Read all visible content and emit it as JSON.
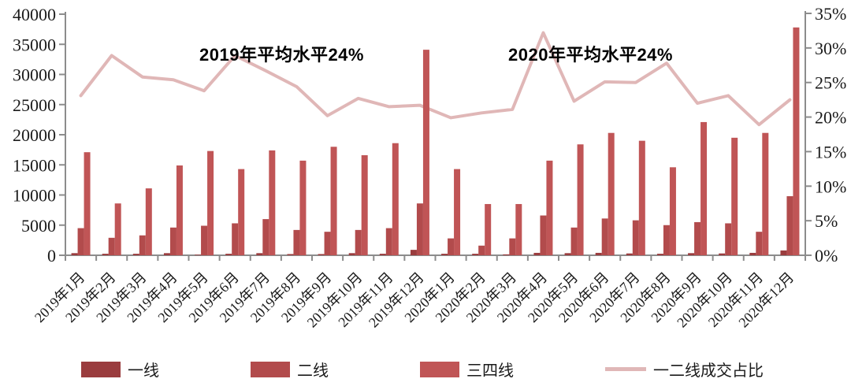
{
  "chart_data": {
    "type": "bar",
    "subtype": "grouped-bar-with-line-combo",
    "title": "",
    "categories": [
      "2019年1月",
      "2019年2月",
      "2019年3月",
      "2019年4月",
      "2019年5月",
      "2019年6月",
      "2019年7月",
      "2019年8月",
      "2019年9月",
      "2019年10月",
      "2019年11月",
      "2019年12月",
      "2020年1月",
      "2020年2月",
      "2020年3月",
      "2020年4月",
      "2020年5月",
      "2020年6月",
      "2020年7月",
      "2020年8月",
      "2020年9月",
      "2020年10月",
      "2020年11月",
      "2020年12月"
    ],
    "series": [
      {
        "name": "一线",
        "type": "bar",
        "axis": "left",
        "color": "#9A3C3E",
        "values": [
          350,
          250,
          250,
          350,
          100,
          250,
          350,
          200,
          200,
          350,
          250,
          900,
          250,
          250,
          150,
          400,
          350,
          400,
          300,
          250,
          350,
          300,
          400,
          800
        ]
      },
      {
        "name": "二线",
        "type": "bar",
        "axis": "left",
        "color": "#B24B4C",
        "values": [
          4500,
          2900,
          3300,
          4600,
          4900,
          5300,
          6000,
          4200,
          3900,
          4200,
          4500,
          8600,
          2800,
          1600,
          2800,
          6600,
          4600,
          6100,
          5800,
          5000,
          5500,
          5300,
          3900,
          9800
        ]
      },
      {
        "name": "三四线",
        "type": "bar",
        "axis": "left",
        "color": "#C05556",
        "values": [
          17100,
          8600,
          11100,
          14900,
          17300,
          14300,
          17400,
          15700,
          18000,
          16600,
          18600,
          34100,
          14300,
          8500,
          8500,
          15700,
          18400,
          20300,
          19000,
          14600,
          22100,
          19500,
          20300,
          37800
        ]
      },
      {
        "name": "一二线成交占比",
        "type": "line",
        "axis": "right",
        "color": "#E0B7B7",
        "values": [
          23.1,
          28.9,
          25.8,
          25.4,
          23.8,
          28.9,
          26.7,
          24.4,
          20.2,
          22.7,
          21.5,
          21.7,
          19.9,
          20.6,
          21.1,
          32.2,
          22.3,
          25.1,
          25.0,
          27.8,
          22.0,
          23.1,
          18.9,
          22.5
        ]
      }
    ],
    "left_axis": {
      "min": 0,
      "max": 40000,
      "step": 5000,
      "tick_labels": [
        "0",
        "5000",
        "10000",
        "15000",
        "20000",
        "25000",
        "30000",
        "35000",
        "40000"
      ]
    },
    "right_axis": {
      "min": 0,
      "max": 35,
      "step": 5,
      "tick_labels": [
        "0%",
        "5%",
        "10%",
        "15%",
        "20%",
        "25%",
        "30%",
        "35%"
      ]
    },
    "grid": false,
    "legend_position": "bottom",
    "annotations": [
      {
        "text": "2019年平均水平24%"
      },
      {
        "text": "2020年平均水平24%"
      }
    ]
  },
  "annotations": {
    "a2019": "2019年平均水平24%",
    "a2020": "2020年平均水平24%"
  },
  "legend": {
    "items": [
      {
        "label": "一线"
      },
      {
        "label": "二线"
      },
      {
        "label": "三四线"
      },
      {
        "label": "一二线成交占比"
      }
    ]
  }
}
